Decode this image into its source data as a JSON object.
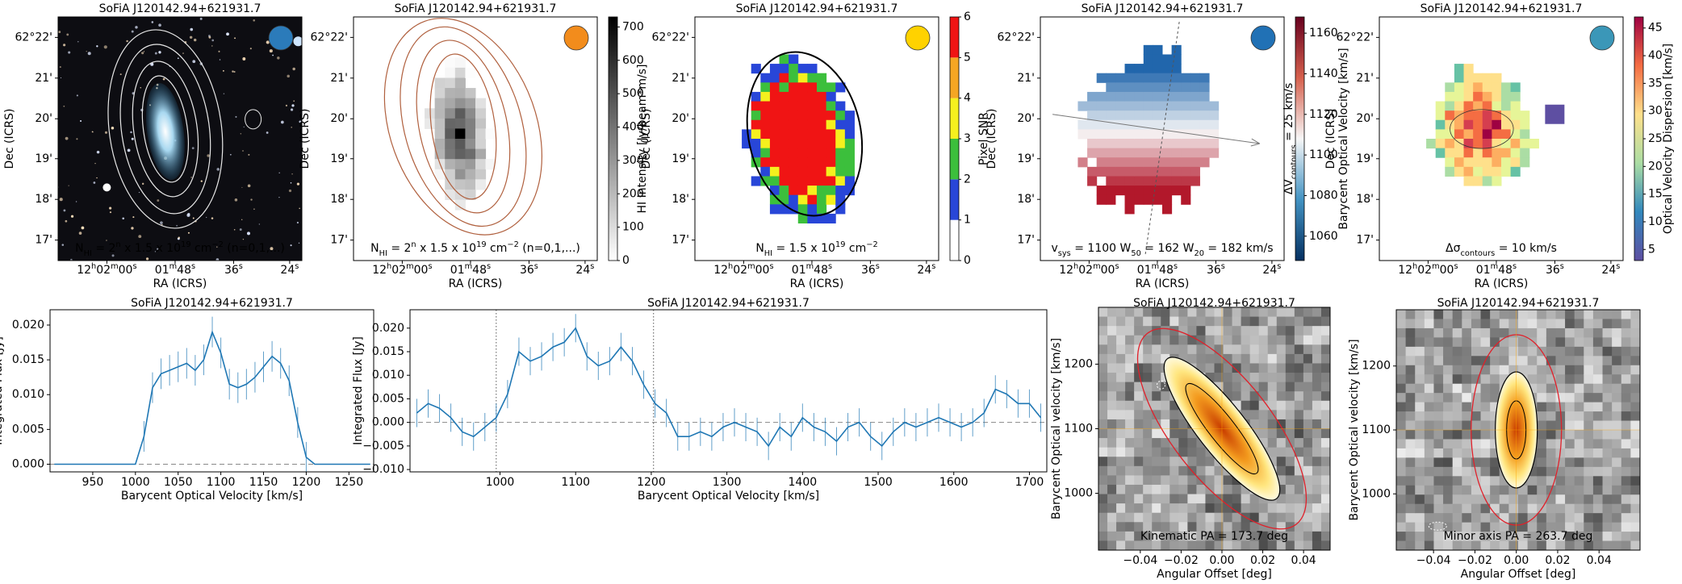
{
  "chart_data": [
    {
      "type": "image",
      "title": "SoFiA J120142.94+621931.7",
      "xlabel": "RA (ICRS)",
      "ylabel": "Dec (ICRS)",
      "xtick_labels": [
        [
          {
            "text": "12"
          },
          {
            "text": "h",
            "script": "sup"
          },
          {
            "text": "02"
          },
          {
            "text": "m",
            "script": "sup"
          },
          {
            "text": "00"
          },
          {
            "text": "s",
            "script": "sup"
          }
        ],
        [
          {
            "text": "01"
          },
          {
            "text": "m",
            "script": "sup"
          },
          {
            "text": "48"
          },
          {
            "text": "s",
            "script": "sup"
          }
        ],
        [
          {
            "text": "36"
          },
          {
            "text": "s",
            "script": "sup"
          }
        ],
        [
          {
            "text": "24"
          },
          {
            "text": "s",
            "script": "sup"
          }
        ]
      ],
      "ytick_labels": [
        "62°22'",
        "21'",
        "20'",
        "19'",
        "18'",
        "17'"
      ],
      "annotation": [
        {
          "text": "N"
        },
        {
          "text": "HI",
          "script": "sub"
        },
        {
          "text": " = 2"
        },
        {
          "text": "n",
          "script": "sup"
        },
        {
          "text": " x 1.5 x 10"
        },
        {
          "text": "19",
          "script": "sup"
        },
        {
          "text": " cm"
        },
        {
          "text": "−2",
          "script": "sup"
        },
        {
          "text": " (n=0,1,...)"
        }
      ],
      "annotation_color": "#ffffff",
      "beam_color": "#2b7bba",
      "map": "optical"
    },
    {
      "type": "image",
      "title": "SoFiA J120142.94+621931.7",
      "xlabel": "RA (ICRS)",
      "ylabel": "Dec (ICRS)",
      "xtick_labels": [
        [
          {
            "text": "12"
          },
          {
            "text": "h",
            "script": "sup"
          },
          {
            "text": "02"
          },
          {
            "text": "m",
            "script": "sup"
          },
          {
            "text": "00"
          },
          {
            "text": "s",
            "script": "sup"
          }
        ],
        [
          {
            "text": "01"
          },
          {
            "text": "m",
            "script": "sup"
          },
          {
            "text": "48"
          },
          {
            "text": "s",
            "script": "sup"
          }
        ],
        [
          {
            "text": "36"
          },
          {
            "text": "s",
            "script": "sup"
          }
        ],
        [
          {
            "text": "24"
          },
          {
            "text": "s",
            "script": "sup"
          }
        ]
      ],
      "ytick_labels": [
        "62°22'",
        "21'",
        "20'",
        "19'",
        "18'",
        "17'"
      ],
      "annotation": [
        {
          "text": "N"
        },
        {
          "text": "HI",
          "script": "sub"
        },
        {
          "text": " = 2"
        },
        {
          "text": "n",
          "script": "sup"
        },
        {
          "text": " x 1.5 x 10"
        },
        {
          "text": "19",
          "script": "sup"
        },
        {
          "text": " cm"
        },
        {
          "text": "−2",
          "script": "sup"
        },
        {
          "text": " (n=0,1,...)"
        }
      ],
      "annotation_color": "#000000",
      "beam_color": "#f28c1c",
      "map": "intensity",
      "colorbar": {
        "label": "HI Intensity [Jy/beam*m/s]",
        "lim": [
          0,
          730
        ],
        "ticks": [
          0,
          100,
          200,
          300,
          400,
          500,
          600,
          700
        ],
        "gradient": "gray"
      }
    },
    {
      "type": "image",
      "title": "SoFiA J120142.94+621931.7",
      "xlabel": "RA (ICRS)",
      "ylabel": "Dec (ICRS)",
      "xtick_labels": [
        [
          {
            "text": "12"
          },
          {
            "text": "h",
            "script": "sup"
          },
          {
            "text": "02"
          },
          {
            "text": "m",
            "script": "sup"
          },
          {
            "text": "00"
          },
          {
            "text": "s",
            "script": "sup"
          }
        ],
        [
          {
            "text": "01"
          },
          {
            "text": "m",
            "script": "sup"
          },
          {
            "text": "48"
          },
          {
            "text": "s",
            "script": "sup"
          }
        ],
        [
          {
            "text": "36"
          },
          {
            "text": "s",
            "script": "sup"
          }
        ],
        [
          {
            "text": "24"
          },
          {
            "text": "s",
            "script": "sup"
          }
        ]
      ],
      "ytick_labels": [
        "62°22'",
        "21'",
        "20'",
        "19'",
        "18'",
        "17'"
      ],
      "annotation": [
        {
          "text": "N"
        },
        {
          "text": "HI",
          "script": "sub"
        },
        {
          "text": " = 1.5 x 10"
        },
        {
          "text": "19",
          "script": "sup"
        },
        {
          "text": " cm"
        },
        {
          "text": "−2",
          "script": "sup"
        }
      ],
      "annotation_color": "#000000",
      "beam_color": "#ffd200",
      "map": "snr",
      "colorbar": {
        "label": "Pixel SNR",
        "lim": [
          0,
          6
        ],
        "ticks": [
          0,
          1,
          2,
          3,
          4,
          5,
          6
        ],
        "colors": [
          "#ffffff",
          "#2846d8",
          "#3cbf3c",
          "#f5f01e",
          "#f5a623",
          "#f01414"
        ]
      }
    },
    {
      "type": "image",
      "title": "SoFiA J120142.94+621931.7",
      "xlabel": "RA (ICRS)",
      "ylabel": "Dec (ICRS)",
      "xtick_labels": [
        [
          {
            "text": "12"
          },
          {
            "text": "h",
            "script": "sup"
          },
          {
            "text": "02"
          },
          {
            "text": "m",
            "script": "sup"
          },
          {
            "text": "00"
          },
          {
            "text": "s",
            "script": "sup"
          }
        ],
        [
          {
            "text": "01"
          },
          {
            "text": "m",
            "script": "sup"
          },
          {
            "text": "48"
          },
          {
            "text": "s",
            "script": "sup"
          }
        ],
        [
          {
            "text": "36"
          },
          {
            "text": "s",
            "script": "sup"
          }
        ],
        [
          {
            "text": "24"
          },
          {
            "text": "s",
            "script": "sup"
          }
        ]
      ],
      "ytick_labels": [
        "62°22'",
        "21'",
        "20'",
        "19'",
        "18'",
        "17'"
      ],
      "annotation": [
        {
          "text": "v"
        },
        {
          "text": "sys",
          "script": "sub"
        },
        {
          "text": " = 1100   W"
        },
        {
          "text": "50",
          "script": "sub"
        },
        {
          "text": " = 162   W"
        },
        {
          "text": "20",
          "script": "sub"
        },
        {
          "text": " = 182 km/s"
        }
      ],
      "annotation_color": "#000000",
      "beam_color": "#2171b5",
      "map": "velocity",
      "colorbar_note": [
        {
          "text": "ΔV"
        },
        {
          "text": "contours",
          "script": "sub"
        },
        {
          "text": " = 25 km/s"
        }
      ],
      "colorbar": {
        "label": "Barycent Optical Velocity [km/s]",
        "lim": [
          1048,
          1168
        ],
        "ticks": [
          1060,
          1080,
          1100,
          1120,
          1140,
          1160
        ],
        "gradient": "rdbu"
      }
    },
    {
      "type": "image",
      "title": "SoFiA J120142.94+621931.7",
      "xlabel": "RA (ICRS)",
      "ylabel": "Dec (ICRS)",
      "xtick_labels": [
        [
          {
            "text": "12"
          },
          {
            "text": "h",
            "script": "sup"
          },
          {
            "text": "02"
          },
          {
            "text": "m",
            "script": "sup"
          },
          {
            "text": "00"
          },
          {
            "text": "s",
            "script": "sup"
          }
        ],
        [
          {
            "text": "01"
          },
          {
            "text": "m",
            "script": "sup"
          },
          {
            "text": "48"
          },
          {
            "text": "s",
            "script": "sup"
          }
        ],
        [
          {
            "text": "36"
          },
          {
            "text": "s",
            "script": "sup"
          }
        ],
        [
          {
            "text": "24"
          },
          {
            "text": "s",
            "script": "sup"
          }
        ]
      ],
      "ytick_labels": [
        "62°22'",
        "21'",
        "20'",
        "19'",
        "18'",
        "17'"
      ],
      "annotation": [
        {
          "text": "Δσ"
        },
        {
          "text": "contours",
          "script": "sub"
        },
        {
          "text": " = 10 km/s"
        }
      ],
      "annotation_color": "#000000",
      "beam_color": "#3b97b8",
      "map": "dispersion",
      "colorbar": {
        "label": "Optical Velocity Dispersion [km/s]",
        "lim": [
          3,
          47
        ],
        "ticks": [
          5,
          10,
          15,
          20,
          25,
          30,
          35,
          40,
          45
        ],
        "gradient": "spectral"
      }
    },
    {
      "type": "line",
      "title": "SoFiA J120142.94+621931.7",
      "xlabel": "Barycent Optical Velocity [km/s]",
      "ylabel": "Integrated Flux [Jy]",
      "x": [
        905,
        1000,
        1010,
        1020,
        1030,
        1040,
        1050,
        1060,
        1070,
        1080,
        1090,
        1100,
        1110,
        1120,
        1130,
        1140,
        1150,
        1160,
        1170,
        1180,
        1190,
        1200,
        1210,
        1275
      ],
      "values": [
        0,
        0,
        0.004,
        0.011,
        0.013,
        0.0135,
        0.014,
        0.0145,
        0.0135,
        0.015,
        0.019,
        0.016,
        0.0115,
        0.011,
        0.0115,
        0.0125,
        0.014,
        0.0155,
        0.0145,
        0.012,
        0.006,
        0.001,
        0,
        0
      ],
      "errors": [
        0,
        0,
        0.0022,
        0.0022,
        0.0022,
        0.0022,
        0.0022,
        0.0022,
        0.0022,
        0.0022,
        0.0022,
        0.0022,
        0.0022,
        0.0022,
        0.0022,
        0.0022,
        0.0022,
        0.0022,
        0.0022,
        0.0022,
        0.0022,
        0.0022,
        0,
        0
      ],
      "color": "#1f77b4",
      "xlim": [
        900,
        1279
      ],
      "ylim": [
        -0.0011,
        0.0222
      ],
      "xticks": [
        950,
        1000,
        1050,
        1100,
        1150,
        1200,
        1250
      ],
      "yticks": [
        {
          "value": 0,
          "label": "0.000"
        },
        {
          "value": 0.005,
          "label": "0.005"
        },
        {
          "value": 0.01,
          "label": "0.010"
        },
        {
          "value": 0.015,
          "label": "0.015"
        },
        {
          "value": 0.02,
          "label": "0.020"
        }
      ],
      "hline": 0
    },
    {
      "type": "line",
      "title": "SoFiA J120142.94+621931.7",
      "xlabel": "Barycent Optical Velocity [km/s]",
      "ylabel": "Integrated Flux [Jy]",
      "x": [
        890,
        905,
        920,
        935,
        950,
        965,
        980,
        995,
        1010,
        1025,
        1040,
        1055,
        1070,
        1085,
        1100,
        1115,
        1130,
        1145,
        1160,
        1175,
        1190,
        1205,
        1220,
        1235,
        1250,
        1265,
        1280,
        1295,
        1310,
        1325,
        1340,
        1355,
        1370,
        1385,
        1400,
        1415,
        1430,
        1445,
        1460,
        1475,
        1490,
        1505,
        1520,
        1535,
        1550,
        1565,
        1580,
        1595,
        1610,
        1625,
        1640,
        1655,
        1670,
        1685,
        1700,
        1715
      ],
      "values": [
        0.002,
        0.004,
        0.003,
        0.001,
        -0.002,
        -0.003,
        -0.001,
        0.001,
        0.006,
        0.015,
        0.013,
        0.014,
        0.016,
        0.017,
        0.02,
        0.014,
        0.012,
        0.013,
        0.016,
        0.013,
        0.008,
        0.004,
        0.002,
        -0.003,
        -0.003,
        -0.002,
        -0.003,
        -0.001,
        0,
        -0.001,
        -0.002,
        -0.005,
        -0.001,
        -0.003,
        0.001,
        -0.001,
        -0.002,
        -0.004,
        -0.001,
        0,
        -0.003,
        -0.005,
        -0.002,
        0,
        -0.001,
        0,
        0.001,
        0,
        -0.001,
        0,
        0.002,
        0.007,
        0.006,
        0.004,
        0.004,
        0.001
      ],
      "errors": [
        0.003,
        0.003,
        0.003,
        0.003,
        0.003,
        0.003,
        0.003,
        0.003,
        0.003,
        0.003,
        0.003,
        0.003,
        0.003,
        0.003,
        0.003,
        0.003,
        0.003,
        0.003,
        0.003,
        0.003,
        0.003,
        0.003,
        0.003,
        0.003,
        0.003,
        0.003,
        0.003,
        0.003,
        0.003,
        0.003,
        0.003,
        0.003,
        0.003,
        0.003,
        0.003,
        0.003,
        0.003,
        0.003,
        0.003,
        0.003,
        0.003,
        0.003,
        0.003,
        0.003,
        0.003,
        0.003,
        0.003,
        0.003,
        0.003,
        0.003,
        0.003,
        0.003,
        0.003,
        0.003,
        0.003,
        0.003
      ],
      "color": "#1f77b4",
      "xlim": [
        881,
        1723
      ],
      "ylim": [
        -0.0105,
        0.0239
      ],
      "xticks": [
        1000,
        1100,
        1200,
        1300,
        1400,
        1500,
        1600,
        1700
      ],
      "yticks": [
        {
          "value": -0.01,
          "label": "−0.010"
        },
        {
          "value": -0.005,
          "label": "−0.005"
        },
        {
          "value": 0,
          "label": "0.000"
        },
        {
          "value": 0.005,
          "label": "0.005"
        },
        {
          "value": 0.01,
          "label": "0.010"
        },
        {
          "value": 0.015,
          "label": "0.015"
        },
        {
          "value": 0.02,
          "label": "0.020"
        }
      ],
      "hline": 0,
      "vlines": [
        995,
        1203
      ]
    },
    {
      "type": "pv",
      "title": "SoFiA J120142.94+621931.7",
      "xlabel": "Angular Offset [deg]",
      "ylabel": "Barycent Optical velocity [km/s]",
      "xlim": [
        -0.0605,
        0.053
      ],
      "ylim": [
        912,
        1288
      ],
      "xticks": [
        {
          "value": -0.04,
          "label": "−0.04"
        },
        {
          "value": -0.02,
          "label": "−0.02"
        },
        {
          "value": 0,
          "label": "0.00"
        },
        {
          "value": 0.02,
          "label": "0.02"
        },
        {
          "value": 0.04,
          "label": "0.04"
        }
      ],
      "yticks": [
        1000,
        1100,
        1200
      ],
      "crosshair": [
        0,
        1100
      ],
      "annotation": "Kinematic PA = 173.7 deg",
      "annotation_color": "#ffa500",
      "tilt": -38
    },
    {
      "type": "pv",
      "title": "SoFiA J120142.94+621931.7",
      "xlabel": "Angular Offset [deg]",
      "ylabel": "Barycent Optical velocity [km/s]",
      "xlim": [
        -0.058,
        0.0598
      ],
      "ylim": [
        912,
        1288
      ],
      "xticks": [
        {
          "value": -0.04,
          "label": "−0.04"
        },
        {
          "value": -0.02,
          "label": "−0.02"
        },
        {
          "value": 0,
          "label": "0.00"
        },
        {
          "value": 0.02,
          "label": "0.02"
        },
        {
          "value": 0.04,
          "label": "0.04"
        }
      ],
      "yticks": [
        1000,
        1100,
        1200
      ],
      "crosshair": [
        0,
        1100
      ],
      "annotation": "Minor axis PA = 263.7 deg",
      "annotation_color": "#ffa500",
      "tilt": 0
    }
  ]
}
